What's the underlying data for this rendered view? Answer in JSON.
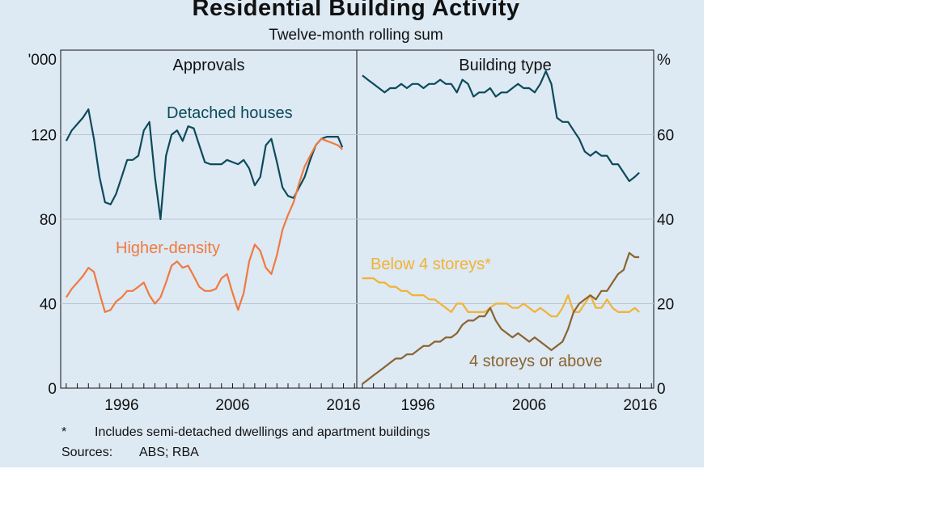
{
  "title": "Residential Building Activity",
  "subtitle": "Twelve-month rolling sum",
  "footnote_marker": "*",
  "footnote": "Includes semi-detached dwellings and apartment buildings",
  "sources_label": "Sources:",
  "sources": "ABS; RBA",
  "chart_data": [
    {
      "type": "line",
      "title": "Approvals",
      "y_unit": "'000",
      "ylim": [
        0,
        160
      ],
      "yticks": [
        0,
        40,
        80,
        120
      ],
      "xlim": [
        1990.5,
        2017.2
      ],
      "xticks": [
        1996,
        2006,
        2016
      ],
      "grid": true,
      "series": [
        {
          "name": "Detached houses",
          "color": "#0c4a5a",
          "x": [
            1991.0,
            1991.5,
            1992.0,
            1992.5,
            1993.0,
            1993.5,
            1994.0,
            1994.5,
            1995.0,
            1995.5,
            1996.0,
            1996.5,
            1997.0,
            1997.5,
            1998.0,
            1998.5,
            1999.0,
            1999.5,
            2000.0,
            2000.5,
            2001.0,
            2001.5,
            2002.0,
            2002.5,
            2003.0,
            2003.5,
            2004.0,
            2004.5,
            2005.0,
            2005.5,
            2006.0,
            2006.5,
            2007.0,
            2007.5,
            2008.0,
            2008.5,
            2009.0,
            2009.5,
            2010.0,
            2010.5,
            2011.0,
            2011.5,
            2012.0,
            2012.5,
            2013.0,
            2013.5,
            2014.0,
            2014.5,
            2015.0,
            2015.5,
            2015.9
          ],
          "values": [
            117,
            122,
            125,
            128,
            132,
            118,
            100,
            88,
            87,
            92,
            100,
            108,
            108,
            110,
            122,
            126,
            100,
            80,
            110,
            120,
            122,
            117,
            124,
            123,
            115,
            107,
            106,
            106,
            106,
            108,
            107,
            106,
            108,
            104,
            96,
            100,
            115,
            118,
            107,
            95,
            91,
            90,
            95,
            100,
            108,
            115,
            118,
            119,
            119,
            119,
            114
          ]
        },
        {
          "name": "Higher-density",
          "color": "#f07a3e",
          "x": [
            1991.0,
            1991.5,
            1992.0,
            1992.5,
            1993.0,
            1993.5,
            1994.0,
            1994.5,
            1995.0,
            1995.5,
            1996.0,
            1996.5,
            1997.0,
            1997.5,
            1998.0,
            1998.5,
            1999.0,
            1999.5,
            2000.0,
            2000.5,
            2001.0,
            2001.5,
            2002.0,
            2002.5,
            2003.0,
            2003.5,
            2004.0,
            2004.5,
            2005.0,
            2005.5,
            2006.0,
            2006.5,
            2007.0,
            2007.5,
            2008.0,
            2008.5,
            2009.0,
            2009.5,
            2010.0,
            2010.5,
            2011.0,
            2011.5,
            2012.0,
            2012.5,
            2013.0,
            2013.5,
            2014.0,
            2014.5,
            2015.0,
            2015.5,
            2015.9
          ],
          "values": [
            43,
            47,
            50,
            53,
            57,
            55,
            45,
            36,
            37,
            41,
            43,
            46,
            46,
            48,
            50,
            44,
            40,
            43,
            50,
            58,
            60,
            57,
            58,
            53,
            48,
            46,
            46,
            47,
            52,
            54,
            45,
            37,
            45,
            60,
            68,
            65,
            57,
            54,
            63,
            75,
            82,
            88,
            97,
            105,
            110,
            115,
            118,
            117,
            116,
            115,
            113
          ]
        }
      ]
    },
    {
      "type": "line",
      "title": "Building type",
      "y_unit": "%",
      "ylim": [
        0,
        80
      ],
      "yticks": [
        0,
        20,
        40,
        60
      ],
      "xlim": [
        1990.5,
        2017.2
      ],
      "xticks": [
        1996,
        2006,
        2016
      ],
      "grid": true,
      "series": [
        {
          "name": "Detached houses",
          "color": "#0c4a5a",
          "x": [
            1991.0,
            1991.5,
            1992.0,
            1992.5,
            1993.0,
            1993.5,
            1994.0,
            1994.5,
            1995.0,
            1995.5,
            1996.0,
            1996.5,
            1997.0,
            1997.5,
            1998.0,
            1998.5,
            1999.0,
            1999.5,
            2000.0,
            2000.5,
            2001.0,
            2001.5,
            2002.0,
            2002.5,
            2003.0,
            2003.5,
            2004.0,
            2004.5,
            2005.0,
            2005.5,
            2006.0,
            2006.5,
            2007.0,
            2007.5,
            2008.0,
            2008.5,
            2009.0,
            2009.5,
            2010.0,
            2010.5,
            2011.0,
            2011.5,
            2012.0,
            2012.5,
            2013.0,
            2013.5,
            2014.0,
            2014.5,
            2015.0,
            2015.5,
            2015.9
          ],
          "values": [
            74,
            73,
            72,
            71,
            70,
            71,
            71,
            72,
            71,
            72,
            72,
            71,
            72,
            72,
            73,
            72,
            72,
            70,
            73,
            72,
            69,
            70,
            70,
            71,
            69,
            70,
            70,
            71,
            72,
            71,
            71,
            70,
            72,
            75,
            72,
            64,
            63,
            63,
            61,
            59,
            56,
            55,
            56,
            55,
            55,
            53,
            53,
            51,
            49,
            50,
            51
          ]
        },
        {
          "name": "Below 4 storeys*",
          "color": "#f2b233",
          "x": [
            1991.0,
            1991.5,
            1992.0,
            1992.5,
            1993.0,
            1993.5,
            1994.0,
            1994.5,
            1995.0,
            1995.5,
            1996.0,
            1996.5,
            1997.0,
            1997.5,
            1998.0,
            1998.5,
            1999.0,
            1999.5,
            2000.0,
            2000.5,
            2001.0,
            2001.5,
            2002.0,
            2002.5,
            2003.0,
            2003.5,
            2004.0,
            2004.5,
            2005.0,
            2005.5,
            2006.0,
            2006.5,
            2007.0,
            2007.5,
            2008.0,
            2008.5,
            2009.0,
            2009.5,
            2010.0,
            2010.5,
            2011.0,
            2011.5,
            2012.0,
            2012.5,
            2013.0,
            2013.5,
            2014.0,
            2014.5,
            2015.0,
            2015.5,
            2015.9
          ],
          "values": [
            26,
            26,
            26,
            25,
            25,
            24,
            24,
            23,
            23,
            22,
            22,
            22,
            21,
            21,
            20,
            19,
            18,
            20,
            20,
            18,
            18,
            18,
            18,
            19,
            20,
            20,
            20,
            19,
            19,
            20,
            19,
            18,
            19,
            18,
            17,
            17,
            19,
            22,
            18,
            18,
            20,
            22,
            19,
            19,
            21,
            19,
            18,
            18,
            18,
            19,
            18
          ]
        },
        {
          "name": "4 storeys or above",
          "color": "#8a6330",
          "x": [
            1991.0,
            1991.5,
            1992.0,
            1992.5,
            1993.0,
            1993.5,
            1994.0,
            1994.5,
            1995.0,
            1995.5,
            1996.0,
            1996.5,
            1997.0,
            1997.5,
            1998.0,
            1998.5,
            1999.0,
            1999.5,
            2000.0,
            2000.5,
            2001.0,
            2001.5,
            2002.0,
            2002.5,
            2003.0,
            2003.5,
            2004.0,
            2004.5,
            2005.0,
            2005.5,
            2006.0,
            2006.5,
            2007.0,
            2007.5,
            2008.0,
            2008.5,
            2009.0,
            2009.5,
            2010.0,
            2010.5,
            2011.0,
            2011.5,
            2012.0,
            2012.5,
            2013.0,
            2013.5,
            2014.0,
            2014.5,
            2015.0,
            2015.5,
            2015.9
          ],
          "values": [
            1,
            2,
            3,
            4,
            5,
            6,
            7,
            7,
            8,
            8,
            9,
            10,
            10,
            11,
            11,
            12,
            12,
            13,
            15,
            16,
            16,
            17,
            17,
            19,
            16,
            14,
            13,
            12,
            13,
            12,
            11,
            12,
            11,
            10,
            9,
            10,
            11,
            14,
            18,
            20,
            21,
            22,
            21,
            23,
            23,
            25,
            27,
            28,
            32,
            31,
            31
          ]
        }
      ]
    }
  ],
  "annotations": [
    {
      "panel": 0,
      "text": "Detached houses",
      "color": "#0c4a5a"
    },
    {
      "panel": 0,
      "text": "Higher-density",
      "color": "#f07a3e"
    },
    {
      "panel": 1,
      "text": "Below 4 storeys*",
      "color": "#f2b233"
    },
    {
      "panel": 1,
      "text": "4 storeys or above",
      "color": "#8a6330"
    }
  ],
  "colors": {
    "background": "#dde9f3",
    "grid": "#b9c7d3",
    "axis": "#111111"
  }
}
